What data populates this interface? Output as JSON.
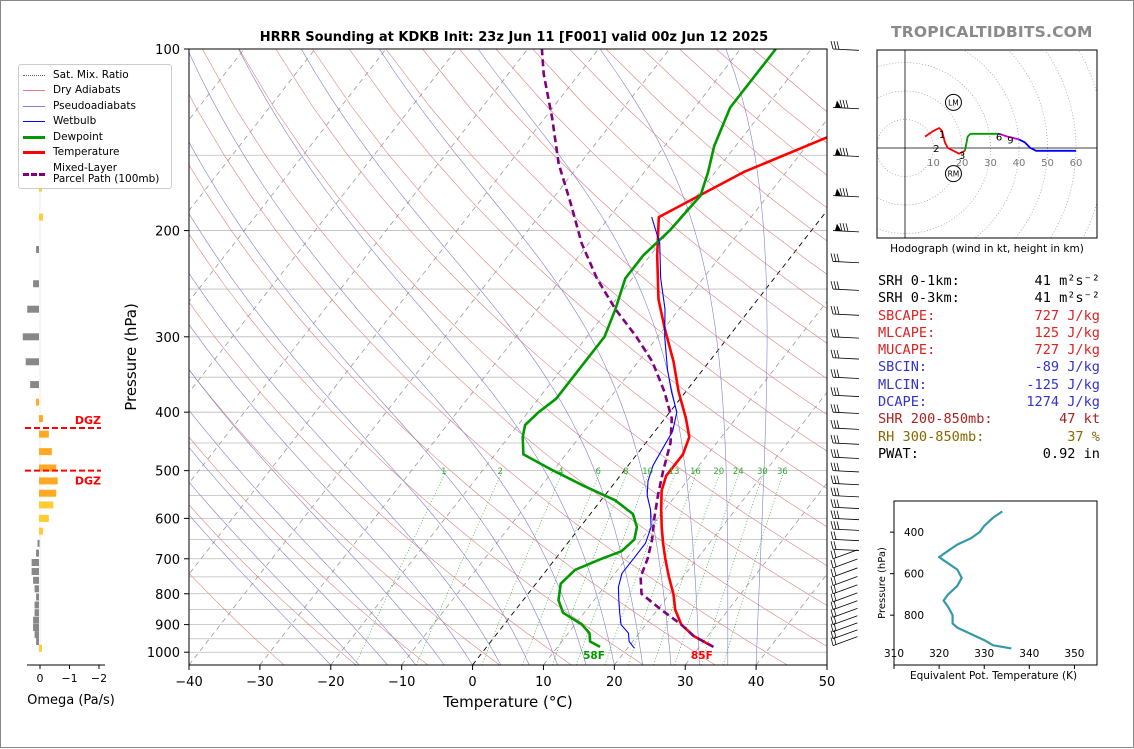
{
  "brand": "TROPICALTIDBITS.COM",
  "chart_data": [
    {
      "type": "line",
      "name": "skew-t",
      "title": "HRRR Sounding at KDKB Init: 23z Jun 11 [F001] valid 00z Jun 12 2025",
      "xlabel": "Temperature (°C)",
      "ylabel": "Pressure (hPa)",
      "xlim": [
        -40,
        50
      ],
      "ylim_pressure": [
        1050,
        100
      ],
      "x_ticks": [
        -40,
        -30,
        -20,
        -10,
        0,
        10,
        20,
        30,
        40,
        50
      ],
      "x_tick_labels": [
        "−40",
        "−30",
        "−20",
        "−10",
        "0",
        "10",
        "20",
        "30",
        "40",
        "50"
      ],
      "y_ticks": [
        1000,
        900,
        800,
        700,
        600,
        500,
        400,
        300,
        200,
        100
      ],
      "y_tick_labels": [
        "1000",
        "900",
        "800",
        "700",
        "600",
        "500",
        "400",
        "300",
        "200",
        "100"
      ],
      "mixing_ratio_labels": [
        "1",
        "2",
        "4",
        "6",
        "8",
        "10",
        "13",
        "16",
        "20",
        "24",
        "30",
        "36"
      ],
      "surface_labels": {
        "dewpoint": "58F",
        "temperature": "85F"
      },
      "colors": {
        "temperature": "#ff0000",
        "dewpoint": "#009900",
        "wetbulb": "#0000ff",
        "parcel": "#800080"
      },
      "series": [
        {
          "name": "Temperature",
          "points": [
            [
              31.5,
              975
            ],
            [
              28,
              940
            ],
            [
              25,
              900
            ],
            [
              22.5,
              850
            ],
            [
              20.5,
              800
            ],
            [
              18,
              750
            ],
            [
              15.5,
              700
            ],
            [
              13.5,
              660
            ],
            [
              11.5,
              620
            ],
            [
              9.5,
              580
            ],
            [
              7.5,
              540
            ],
            [
              6.5,
              510
            ],
            [
              6.5,
              470
            ],
            [
              5.5,
              440
            ],
            [
              3,
              410
            ],
            [
              -1,
              370
            ],
            [
              -5,
              330
            ],
            [
              -10,
              290
            ],
            [
              -14,
              260
            ],
            [
              -19,
              220
            ],
            [
              -23,
              190
            ],
            [
              -16,
              160
            ],
            [
              -8,
              140
            ],
            [
              -1,
              120
            ],
            [
              2.5,
              100
            ]
          ]
        },
        {
          "name": "Dewpoint",
          "points": [
            [
              16,
              980
            ],
            [
              14,
              960
            ],
            [
              13,
              930
            ],
            [
              11,
              900
            ],
            [
              7,
              860
            ],
            [
              5,
              820
            ],
            [
              3.5,
              770
            ],
            [
              4,
              730
            ],
            [
              6.5,
              700
            ],
            [
              8.5,
              680
            ],
            [
              9,
              650
            ],
            [
              8,
              620
            ],
            [
              6,
              590
            ],
            [
              2,
              560
            ],
            [
              -4,
              530
            ],
            [
              -10,
              500
            ],
            [
              -16,
              470
            ],
            [
              -18,
              440
            ],
            [
              -19,
              420
            ],
            [
              -18.5,
              400
            ],
            [
              -17.5,
              380
            ],
            [
              -17.5,
              340
            ],
            [
              -17.5,
              300
            ],
            [
              -19,
              270
            ],
            [
              -21,
              240
            ],
            [
              -21,
              220
            ],
            [
              -20,
              200
            ],
            [
              -19.5,
              175
            ],
            [
              -21,
              160
            ],
            [
              -23,
              145
            ],
            [
              -25,
              125
            ],
            [
              -25,
              100
            ]
          ]
        },
        {
          "name": "Wetbulb",
          "points": [
            [
              21,
              985
            ],
            [
              19.5,
              960
            ],
            [
              18.5,
              930
            ],
            [
              16.5,
              900
            ],
            [
              15,
              860
            ],
            [
              13.5,
              820
            ],
            [
              12,
              780
            ],
            [
              11,
              740
            ],
            [
              11,
              700
            ],
            [
              11,
              660
            ],
            [
              10,
              620
            ],
            [
              8,
              580
            ],
            [
              6,
              550
            ],
            [
              4.5,
              520
            ],
            [
              3.5,
              490
            ],
            [
              3,
              460
            ],
            [
              2.5,
              430
            ],
            [
              1,
              400
            ],
            [
              -2,
              370
            ],
            [
              -5,
              340
            ],
            [
              -9,
              300
            ],
            [
              -12,
              270
            ],
            [
              -16,
              240
            ],
            [
              -20,
              210
            ],
            [
              -24,
              190
            ]
          ]
        },
        {
          "name": "Mixed-Layer Parcel Path (100mb)",
          "points": [
            [
              32,
              980
            ],
            [
              28,
              940
            ],
            [
              25,
              900
            ],
            [
              20.5,
              850
            ],
            [
              16,
              800
            ],
            [
              14,
              750
            ],
            [
              13,
              700
            ],
            [
              11.5,
              650
            ],
            [
              9.5,
              600
            ],
            [
              7.5,
              550
            ],
            [
              5.5,
              500
            ],
            [
              3.5,
              450
            ],
            [
              1,
              410
            ],
            [
              -3,
              370
            ],
            [
              -8,
              330
            ],
            [
              -13,
              300
            ],
            [
              -19,
              270
            ],
            [
              -25,
              240
            ],
            [
              -31,
              210
            ],
            [
              -37,
              180
            ],
            [
              -43,
              155
            ],
            [
              -49,
              130
            ],
            [
              -55,
              110
            ],
            [
              -58,
              100
            ]
          ]
        }
      ],
      "legend": [
        {
          "label": "Sat. Mix. Ratio",
          "style": "dotted",
          "color": "#666666"
        },
        {
          "label": "Dry Adiabats",
          "style": "solid-thin",
          "color": "#e08080"
        },
        {
          "label": "Pseudoadiabats",
          "style": "solid-thin",
          "color": "#8080cc"
        },
        {
          "label": "Wetbulb",
          "style": "solid",
          "color": "#0000ff"
        },
        {
          "label": "Dewpoint",
          "style": "solid-thick",
          "color": "#009900"
        },
        {
          "label": "Temperature",
          "style": "solid-thick",
          "color": "#ff0000"
        },
        {
          "label": "Mixed-Layer\nParcel Path (100mb)",
          "style": "dashed-thick",
          "color": "#800080"
        }
      ]
    },
    {
      "type": "bar",
      "name": "omega",
      "xlabel": "Omega (Pa/s)",
      "xlim": [
        2,
        -2
      ],
      "x_ticks": [
        0,
        -1,
        -2
      ],
      "x_tick_labels": [
        "0",
        "−1",
        "−2"
      ],
      "dgz_label": "DGZ",
      "dgz_pressures": [
        425,
        500
      ],
      "bars": [
        [
          985,
          -0.05
        ],
        [
          960,
          0.1
        ],
        [
          935,
          0.15
        ],
        [
          910,
          0.2
        ],
        [
          885,
          0.2
        ],
        [
          860,
          0.15
        ],
        [
          835,
          0.15
        ],
        [
          810,
          0.1
        ],
        [
          785,
          0.15
        ],
        [
          760,
          0.2
        ],
        [
          735,
          0.25
        ],
        [
          710,
          0.25
        ],
        [
          685,
          0.1
        ],
        [
          660,
          0.05
        ],
        [
          630,
          -0.1
        ],
        [
          600,
          -0.3
        ],
        [
          570,
          -0.45
        ],
        [
          545,
          -0.55
        ],
        [
          520,
          -0.6
        ],
        [
          495,
          -0.55
        ],
        [
          465,
          -0.4
        ],
        [
          435,
          -0.3
        ],
        [
          410,
          -0.1
        ],
        [
          385,
          0.1
        ],
        [
          360,
          0.3
        ],
        [
          330,
          0.45
        ],
        [
          300,
          0.55
        ],
        [
          270,
          0.4
        ],
        [
          245,
          0.2
        ],
        [
          215,
          0.1
        ],
        [
          190,
          -0.1
        ],
        [
          170,
          -0.05
        ]
      ]
    },
    {
      "type": "scatter",
      "name": "hodograph",
      "xlabel": "Hodograph (wind in kt, height in km)",
      "ring_labels": [
        "10",
        "20",
        "30",
        "40",
        "50",
        "60"
      ],
      "storm_motion_labels": [
        "LM",
        "RM"
      ],
      "storm_motion": {
        "LM": [
          17,
          16
        ],
        "RM": [
          17,
          -9
        ]
      },
      "segments": [
        {
          "color": "#ff0000",
          "points": [
            [
              7,
              4
            ],
            [
              10,
              6
            ],
            [
              12,
              7
            ],
            [
              13,
              6
            ],
            [
              14,
              2
            ],
            [
              15,
              0
            ],
            [
              17,
              -1
            ],
            [
              19,
              -2
            ],
            [
              21,
              -1
            ]
          ]
        },
        {
          "color": "#009900",
          "points": [
            [
              21,
              -1
            ],
            [
              22,
              4
            ],
            [
              23,
              5
            ],
            [
              26,
              5
            ],
            [
              30,
              5
            ],
            [
              33,
              5
            ]
          ]
        },
        {
          "color": "#cc00cc",
          "points": [
            [
              33,
              5
            ],
            [
              36,
              4
            ],
            [
              40,
              3
            ]
          ]
        },
        {
          "color": "#0000ff",
          "points": [
            [
              40,
              3
            ],
            [
              42,
              2
            ],
            [
              44,
              0
            ],
            [
              46,
              -1
            ],
            [
              50,
              -1
            ],
            [
              56,
              -1
            ],
            [
              60,
              -1
            ]
          ]
        }
      ],
      "height_labels": [
        [
          "1",
          13,
          5
        ],
        [
          "2",
          11,
          0
        ],
        [
          "3",
          20,
          -2.5
        ],
        [
          "6",
          33,
          4
        ],
        [
          "9",
          37,
          3
        ]
      ]
    },
    {
      "type": "line",
      "name": "theta-e",
      "xlabel": "Equivalent Pot. Temperature (K)",
      "ylabel": "Pressure (hPa)",
      "xlim": [
        310,
        355
      ],
      "x_ticks": [
        310,
        320,
        330,
        340,
        350
      ],
      "x_tick_labels": [
        "310",
        "320",
        "330",
        "340",
        "350"
      ],
      "y_ticks": [
        400,
        600,
        800
      ],
      "y_tick_labels": [
        "400",
        "600",
        "800"
      ],
      "ylim": [
        1040,
        250
      ],
      "color": "#3399aa",
      "points": [
        [
          336,
          960
        ],
        [
          332,
          945
        ],
        [
          330,
          920
        ],
        [
          327,
          890
        ],
        [
          324,
          860
        ],
        [
          323,
          840
        ],
        [
          323,
          800
        ],
        [
          322,
          760
        ],
        [
          321,
          730
        ],
        [
          322,
          700
        ],
        [
          324,
          660
        ],
        [
          325,
          620
        ],
        [
          324,
          580
        ],
        [
          322,
          550
        ],
        [
          320,
          520
        ],
        [
          322,
          490
        ],
        [
          324,
          460
        ],
        [
          327,
          430
        ],
        [
          329,
          400
        ],
        [
          330,
          370
        ],
        [
          332,
          330
        ],
        [
          334,
          300
        ]
      ]
    }
  ],
  "params": [
    {
      "label": "SRH 0-1km:",
      "value": "41 m²s⁻²",
      "color": "#000000"
    },
    {
      "label": "SRH 0-3km:",
      "value": "41 m²s⁻²",
      "color": "#000000"
    },
    {
      "label": "SBCAPE:",
      "value": "727 J/kg",
      "color": "#dd2222"
    },
    {
      "label": "MLCAPE:",
      "value": "125 J/kg",
      "color": "#dd2222"
    },
    {
      "label": "MUCAPE:",
      "value": "727 J/kg",
      "color": "#dd2222"
    },
    {
      "label": "SBCIN:",
      "value": "-89 J/kg",
      "color": "#3333cc"
    },
    {
      "label": "MLCIN:",
      "value": "-125 J/kg",
      "color": "#3333cc"
    },
    {
      "label": "DCAPE:",
      "value": "1274 J/kg",
      "color": "#3333cc"
    },
    {
      "label": "SHR 200-850mb:",
      "value": "47 kt",
      "color": "#aa2222"
    },
    {
      "label": "RH 300-850mb:",
      "value": "37 %",
      "color": "#886600"
    },
    {
      "label": "PWAT:",
      "value": "0.92 in",
      "color": "#000000"
    }
  ]
}
